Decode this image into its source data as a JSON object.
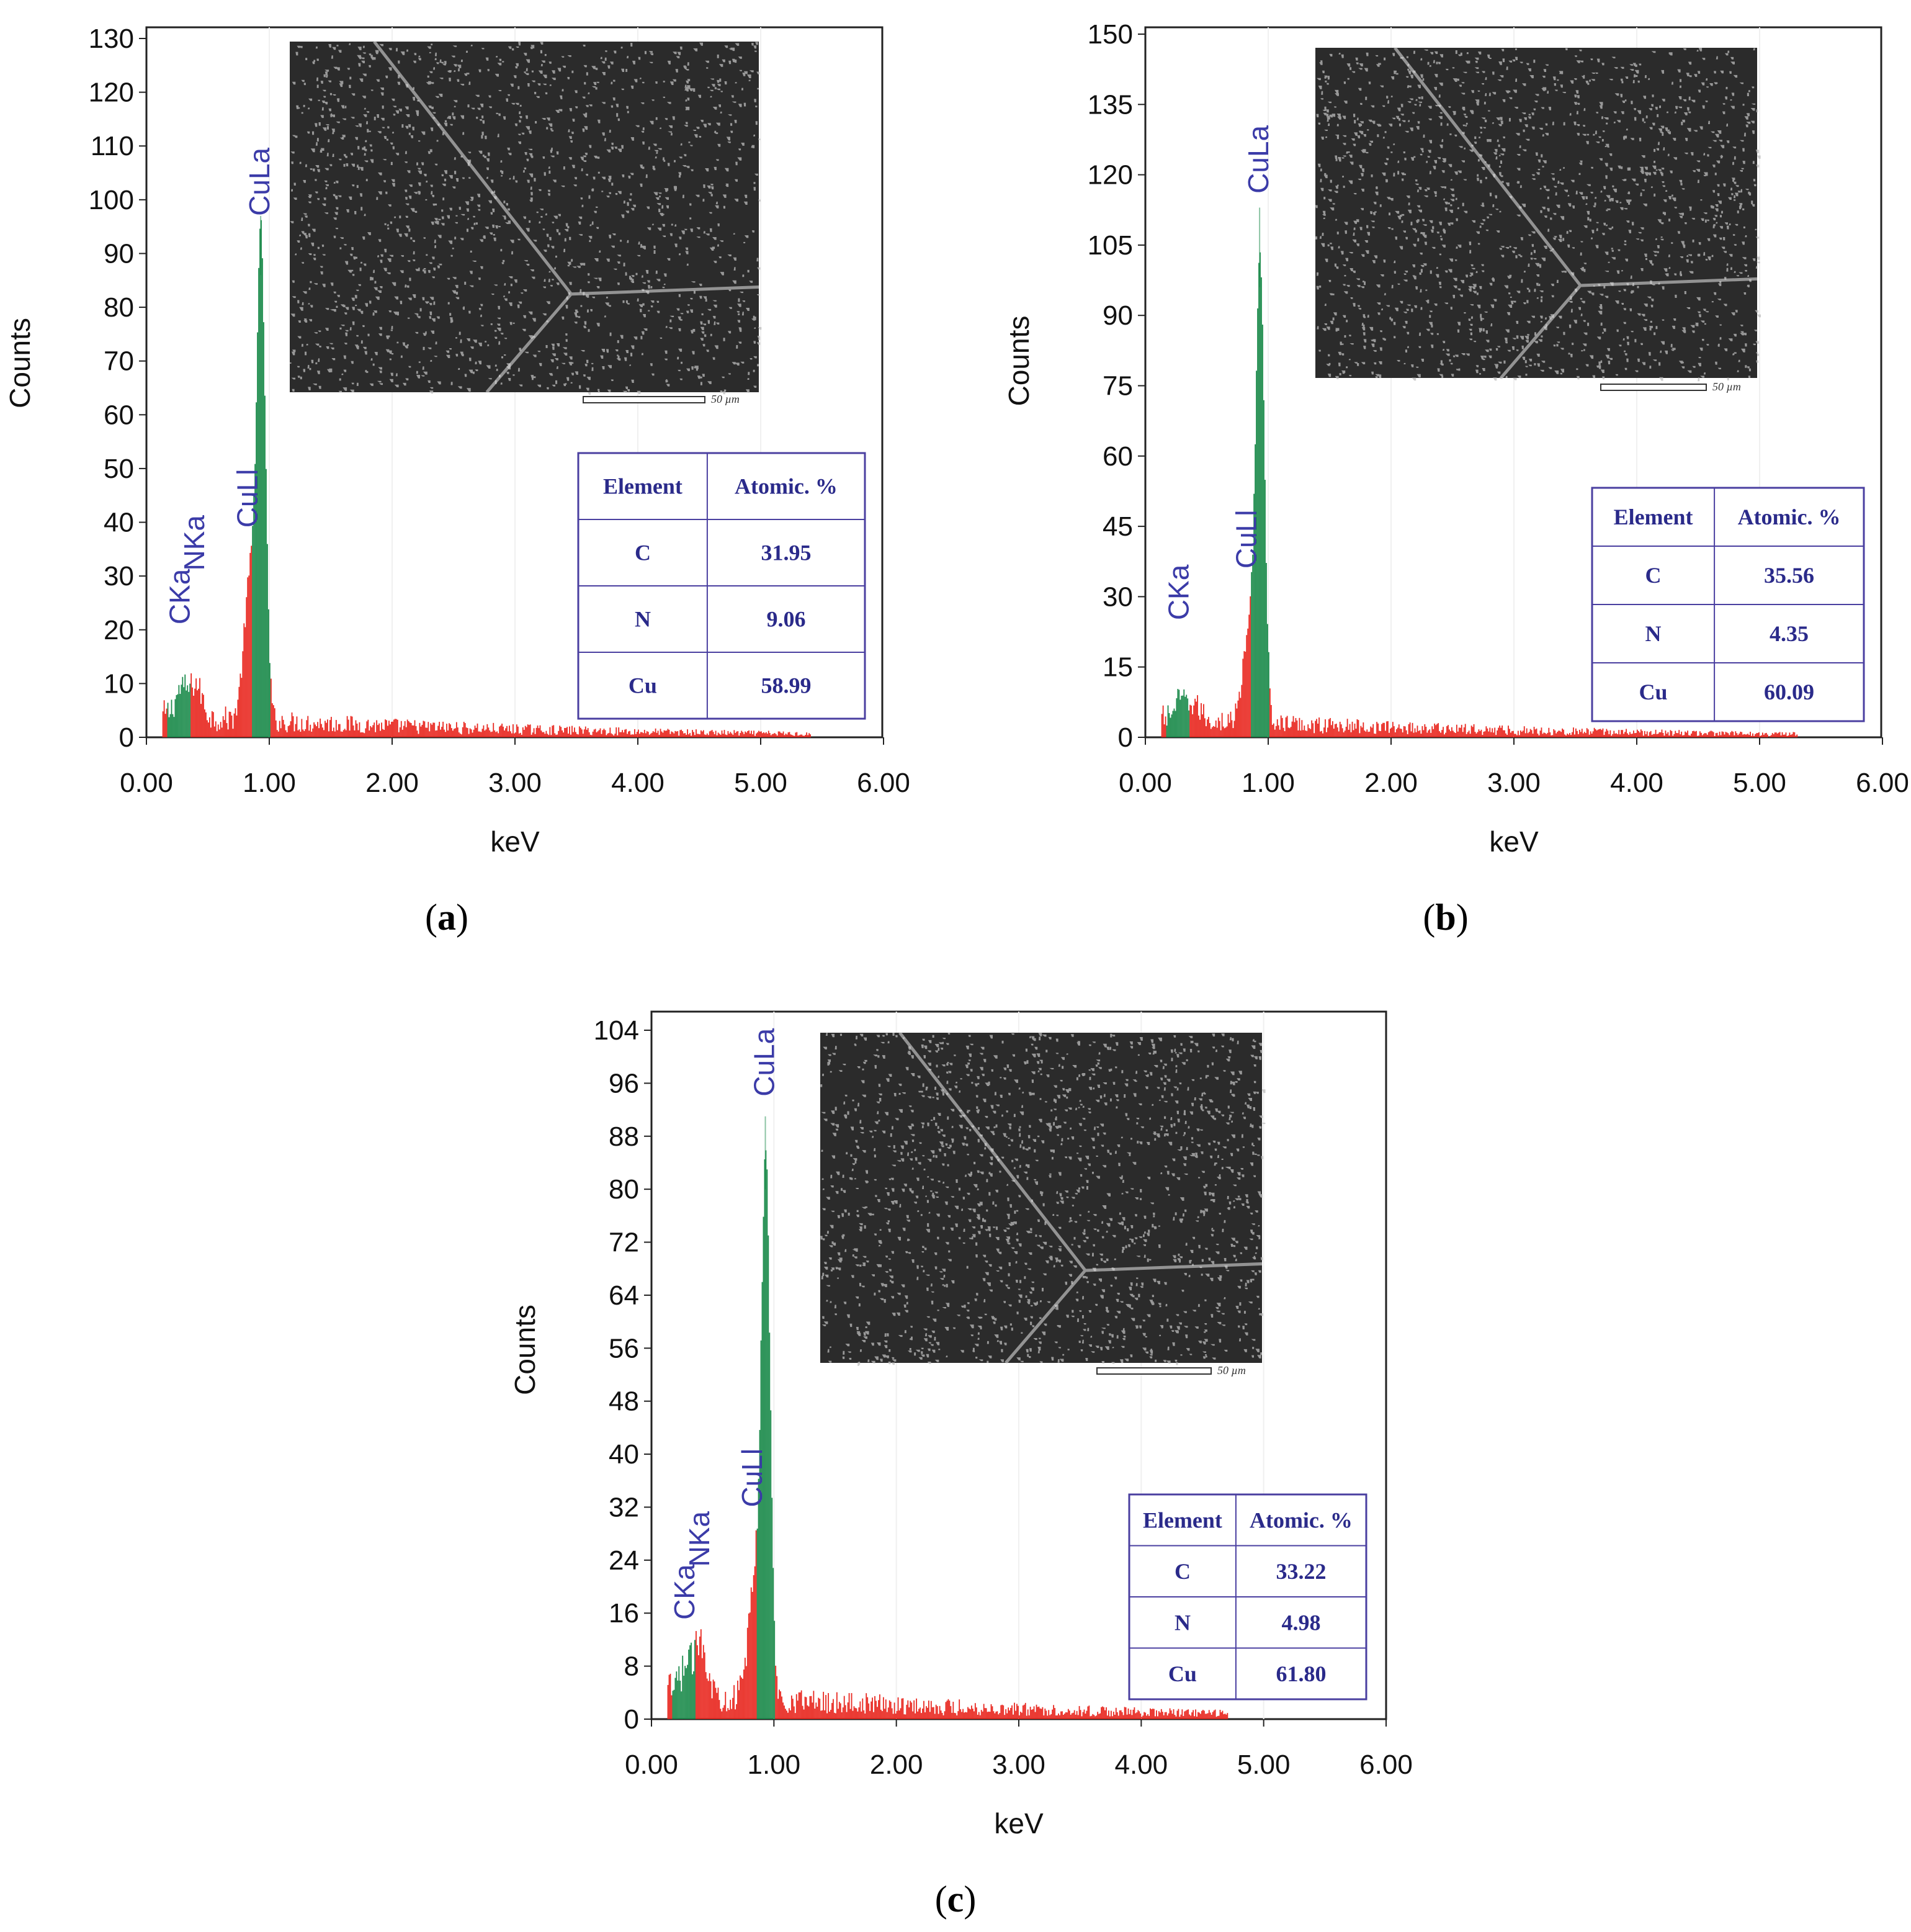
{
  "figure": {
    "panels": [
      {
        "label_letter": "a",
        "table": {
          "headers": [
            "Element",
            "Atomic. %"
          ],
          "rows": [
            [
              "C",
              "31.95"
            ],
            [
              "N",
              "9.06"
            ],
            [
              "Cu",
              "58.99"
            ]
          ]
        },
        "scale_bar_label": "50 µm",
        "colors": {
          "major": "#1a8a4a",
          "minor": "#e8261e"
        }
      },
      {
        "label_letter": "b",
        "table": {
          "headers": [
            "Element",
            "Atomic. %"
          ],
          "rows": [
            [
              "C",
              "35.56"
            ],
            [
              "N",
              "4.35"
            ],
            [
              "Cu",
              "60.09"
            ]
          ]
        },
        "scale_bar_label": "50 µm",
        "colors": {
          "major": "#1a8a4a",
          "minor": "#e8261e"
        }
      },
      {
        "label_letter": "c",
        "table": {
          "headers": [
            "Element",
            "Atomic. %"
          ],
          "rows": [
            [
              "C",
              "33.22"
            ],
            [
              "N",
              "4.98"
            ],
            [
              "Cu",
              "61.80"
            ]
          ]
        },
        "scale_bar_label": "50 µm",
        "colors": {
          "major": "#1a8a4a",
          "minor": "#e8261e"
        }
      }
    ]
  },
  "chart_data": [
    {
      "type": "bar",
      "xlabel": "keV",
      "ylabel": "Counts",
      "xlim": [
        0,
        6
      ],
      "ylim": [
        0,
        130
      ],
      "x_ticks": [
        "0.00",
        "1.00",
        "2.00",
        "3.00",
        "4.00",
        "5.00",
        "6.00"
      ],
      "y_ticks": [
        "0",
        "10",
        "20",
        "30",
        "40",
        "50",
        "60",
        "70",
        "80",
        "90",
        "100",
        "110",
        "120",
        "130"
      ],
      "grid": false,
      "peak_labels": [
        {
          "text": "CKa",
          "x": 0.28,
          "y": 21
        },
        {
          "text": "NKa",
          "x": 0.4,
          "y": 31
        },
        {
          "text": "CuLl",
          "x": 0.83,
          "y": 39
        },
        {
          "text": "CuLa",
          "x": 0.93,
          "y": 97
        }
      ],
      "spectrum": {
        "peak_energy": 0.93,
        "peak_counts": 86,
        "peak_marker_counts": 97,
        "shoulder_energy": 0.84,
        "shoulder_counts": 26,
        "c_peak_counts": 5,
        "n_peak_counts": 6,
        "background_counts": 3,
        "background_end": 5.4
      }
    },
    {
      "type": "bar",
      "xlabel": "keV",
      "ylabel": "Counts",
      "xlim": [
        0,
        6
      ],
      "ylim": [
        0,
        150
      ],
      "x_ticks": [
        "0.00",
        "1.00",
        "2.00",
        "3.00",
        "4.00",
        "5.00",
        "6.00"
      ],
      "y_ticks": [
        "0",
        "15",
        "30",
        "45",
        "60",
        "75",
        "90",
        "105",
        "120",
        "135",
        "150"
      ],
      "grid": false,
      "peak_labels": [
        {
          "text": "CKa",
          "x": 0.28,
          "y": 25
        },
        {
          "text": "CuLl",
          "x": 0.83,
          "y": 36
        },
        {
          "text": "CuLa",
          "x": 0.93,
          "y": 116
        }
      ],
      "spectrum": {
        "peak_energy": 0.93,
        "peak_counts": 96,
        "peak_marker_counts": 113,
        "shoulder_energy": 0.84,
        "shoulder_counts": 19,
        "c_peak_counts": 4,
        "n_peak_counts": 3,
        "background_counts": 3,
        "background_end": 5.3
      }
    },
    {
      "type": "bar",
      "xlabel": "keV",
      "ylabel": "Counts",
      "xlim": [
        0,
        6
      ],
      "ylim": [
        0,
        104
      ],
      "x_ticks": [
        "0.00",
        "1.00",
        "2.00",
        "3.00",
        "4.00",
        "5.00",
        "6.00"
      ],
      "y_ticks": [
        "0",
        "8",
        "16",
        "24",
        "32",
        "40",
        "48",
        "56",
        "64",
        "72",
        "80",
        "88",
        "96",
        "104"
      ],
      "grid": false,
      "peak_labels": [
        {
          "text": "CKa",
          "x": 0.28,
          "y": 15
        },
        {
          "text": "NKa",
          "x": 0.4,
          "y": 23
        },
        {
          "text": "CuLl",
          "x": 0.83,
          "y": 32
        },
        {
          "text": "CuLa",
          "x": 0.93,
          "y": 94
        }
      ],
      "spectrum": {
        "peak_energy": 0.93,
        "peak_counts": 80,
        "peak_marker_counts": 91,
        "shoulder_energy": 0.84,
        "shoulder_counts": 18,
        "c_peak_counts": 4,
        "n_peak_counts": 8,
        "background_counts": 3,
        "background_end": 4.7
      }
    }
  ]
}
